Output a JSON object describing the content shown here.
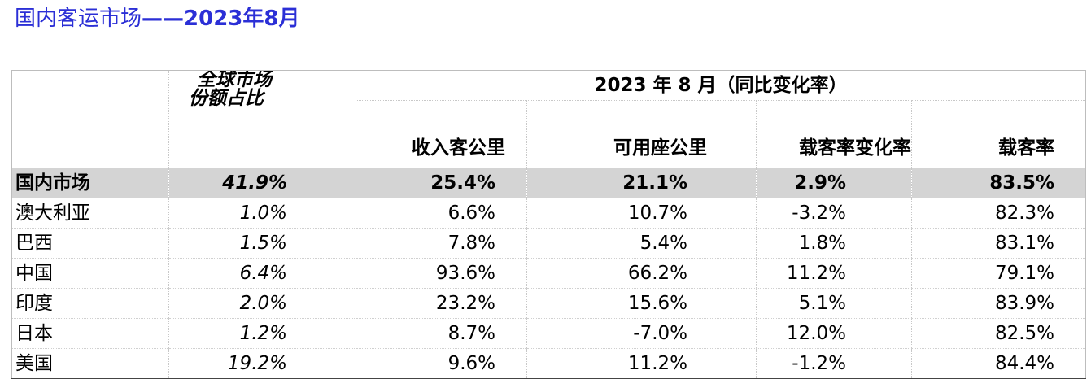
{
  "title": {
    "part1": "国内客运市场",
    "part2": "——2023年8月"
  },
  "table": {
    "share_header_line1": "全球市场",
    "share_header_line2": "份额占比",
    "period_header": "2023 年 8 月（同比变化率）",
    "columns": {
      "rpk": "收入客公里",
      "ask": "可用座公里",
      "plf_change": "载客率变化率",
      "plf": "载客率"
    },
    "rows": [
      {
        "region": "国内市场",
        "share": "41.9%",
        "rpk": "25.4%",
        "ask": "21.1%",
        "plf_change": "2.9%",
        "plf": "83.5%"
      },
      {
        "region": "澳大利亚",
        "share": "1.0%",
        "rpk": "6.6%",
        "ask": "10.7%",
        "plf_change": "-3.2%",
        "plf": "82.3%"
      },
      {
        "region": "巴西",
        "share": "1.5%",
        "rpk": "7.8%",
        "ask": "5.4%",
        "plf_change": "1.8%",
        "plf": "83.1%"
      },
      {
        "region": "中国",
        "share": "6.4%",
        "rpk": "93.6%",
        "ask": "66.2%",
        "plf_change": "11.2%",
        "plf": "79.1%"
      },
      {
        "region": "印度",
        "share": "2.0%",
        "rpk": "23.2%",
        "ask": "15.6%",
        "plf_change": "5.1%",
        "plf": "83.9%"
      },
      {
        "region": "日本",
        "share": "1.2%",
        "rpk": "8.7%",
        "ask": "-7.0%",
        "plf_change": "12.0%",
        "plf": "82.5%"
      },
      {
        "region": "美国",
        "share": "19.2%",
        "rpk": "9.6%",
        "ask": "11.2%",
        "plf_change": "-1.2%",
        "plf": "84.4%"
      }
    ]
  },
  "colors": {
    "title": "#2b2fd6",
    "highlight_row_bg": "#d4d4d4"
  }
}
